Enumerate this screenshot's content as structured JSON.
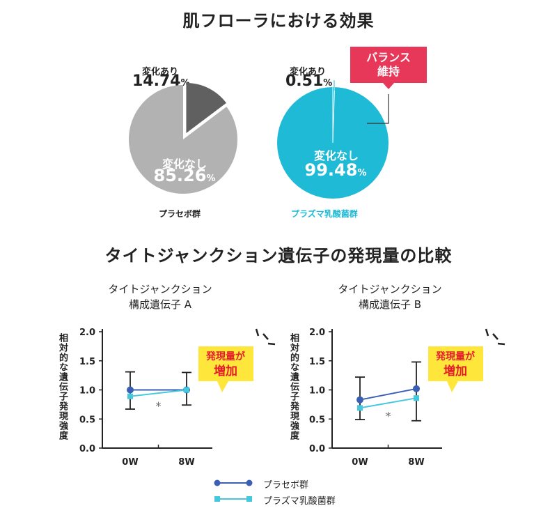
{
  "top_title": "肌フローラにおける効果",
  "bottom_title": "タイトジャンクション遺伝子の発現量の比較",
  "pies": [
    {
      "group": "プラセボ群",
      "changed_label": "変化あり",
      "changed_value": "14.74",
      "unchanged_label": "変化なし",
      "unchanged_value": "85.26",
      "unit": "%",
      "main_color": "#b2b2b2",
      "slice_color": "#606060",
      "group_color": "#222222"
    },
    {
      "group": "プラズマ乳酸菌群",
      "changed_label": "変化あり",
      "changed_value": "0.51",
      "unchanged_label": "変化なし",
      "unchanged_value": "99.48",
      "unit": "%",
      "main_color": "#1fbad6",
      "slice_color": "#1fbad6",
      "group_color": "#1fbad6",
      "callout": "バランス\n維持"
    }
  ],
  "charts": [
    {
      "title_line1": "タイトジャンクション",
      "title_line2": "構成遺伝子 A",
      "ylabel": "相対的な遺伝子発現強度",
      "callout_line1": "発現量が",
      "callout_line2": "増加",
      "significance": "*"
    },
    {
      "title_line1": "タイトジャンクション",
      "title_line2": "構成遺伝子 B",
      "ylabel": "相対的な遺伝子発現強度",
      "callout_line1": "発現量が",
      "callout_line2": "増加",
      "significance": "*"
    }
  ],
  "chart_data": [
    {
      "type": "pie",
      "title": "肌フローラにおける効果",
      "group": "プラセボ群",
      "categories": [
        "変化あり",
        "変化なし"
      ],
      "values": [
        14.74,
        85.26
      ],
      "colors": [
        "#606060",
        "#b2b2b2"
      ]
    },
    {
      "type": "pie",
      "title": "肌フローラにおける効果",
      "group": "プラズマ乳酸菌群",
      "categories": [
        "変化あり",
        "変化なし"
      ],
      "values": [
        0.51,
        99.48
      ],
      "colors": [
        "#1fbad6",
        "#1fbad6"
      ]
    },
    {
      "type": "line",
      "title": "タイトジャンクション 構成遺伝子 A",
      "xlabel": "",
      "ylabel": "相対的な遺伝子発現強度",
      "categories": [
        "0W",
        "8W"
      ],
      "ylim": [
        0,
        2.0
      ],
      "yticks": [
        "0.0",
        "0.5",
        "1.0",
        "1.5",
        "2.0"
      ],
      "series": [
        {
          "name": "プラセボ群",
          "values": [
            1.0,
            1.0
          ],
          "err_low": [
            0.67,
            0.74
          ],
          "err_high": [
            1.31,
            1.3
          ],
          "color": "#3a5fb5",
          "marker": "circle"
        },
        {
          "name": "プラズマ乳酸菌群",
          "values": [
            0.89,
            1.0
          ],
          "color": "#45c8dd",
          "marker": "square"
        }
      ]
    },
    {
      "type": "line",
      "title": "タイトジャンクション 構成遺伝子 B",
      "xlabel": "",
      "ylabel": "相対的な遺伝子発現強度",
      "categories": [
        "0W",
        "8W"
      ],
      "ylim": [
        0,
        2.0
      ],
      "yticks": [
        "0.0",
        "0.5",
        "1.0",
        "1.5",
        "2.0"
      ],
      "series": [
        {
          "name": "プラセボ群",
          "values": [
            0.83,
            1.02
          ],
          "err_low": [
            0.49,
            0.47
          ],
          "err_high": [
            1.22,
            1.48
          ],
          "color": "#3a5fb5",
          "marker": "circle"
        },
        {
          "name": "プラズマ乳酸菌群",
          "values": [
            0.69,
            0.86
          ],
          "color": "#45c8dd",
          "marker": "square"
        }
      ]
    }
  ],
  "legend": [
    {
      "label": "プラセボ群",
      "color": "#3a5fb5",
      "marker": "circle"
    },
    {
      "label": "プラズマ乳酸菌群",
      "color": "#45c8dd",
      "marker": "square"
    }
  ]
}
